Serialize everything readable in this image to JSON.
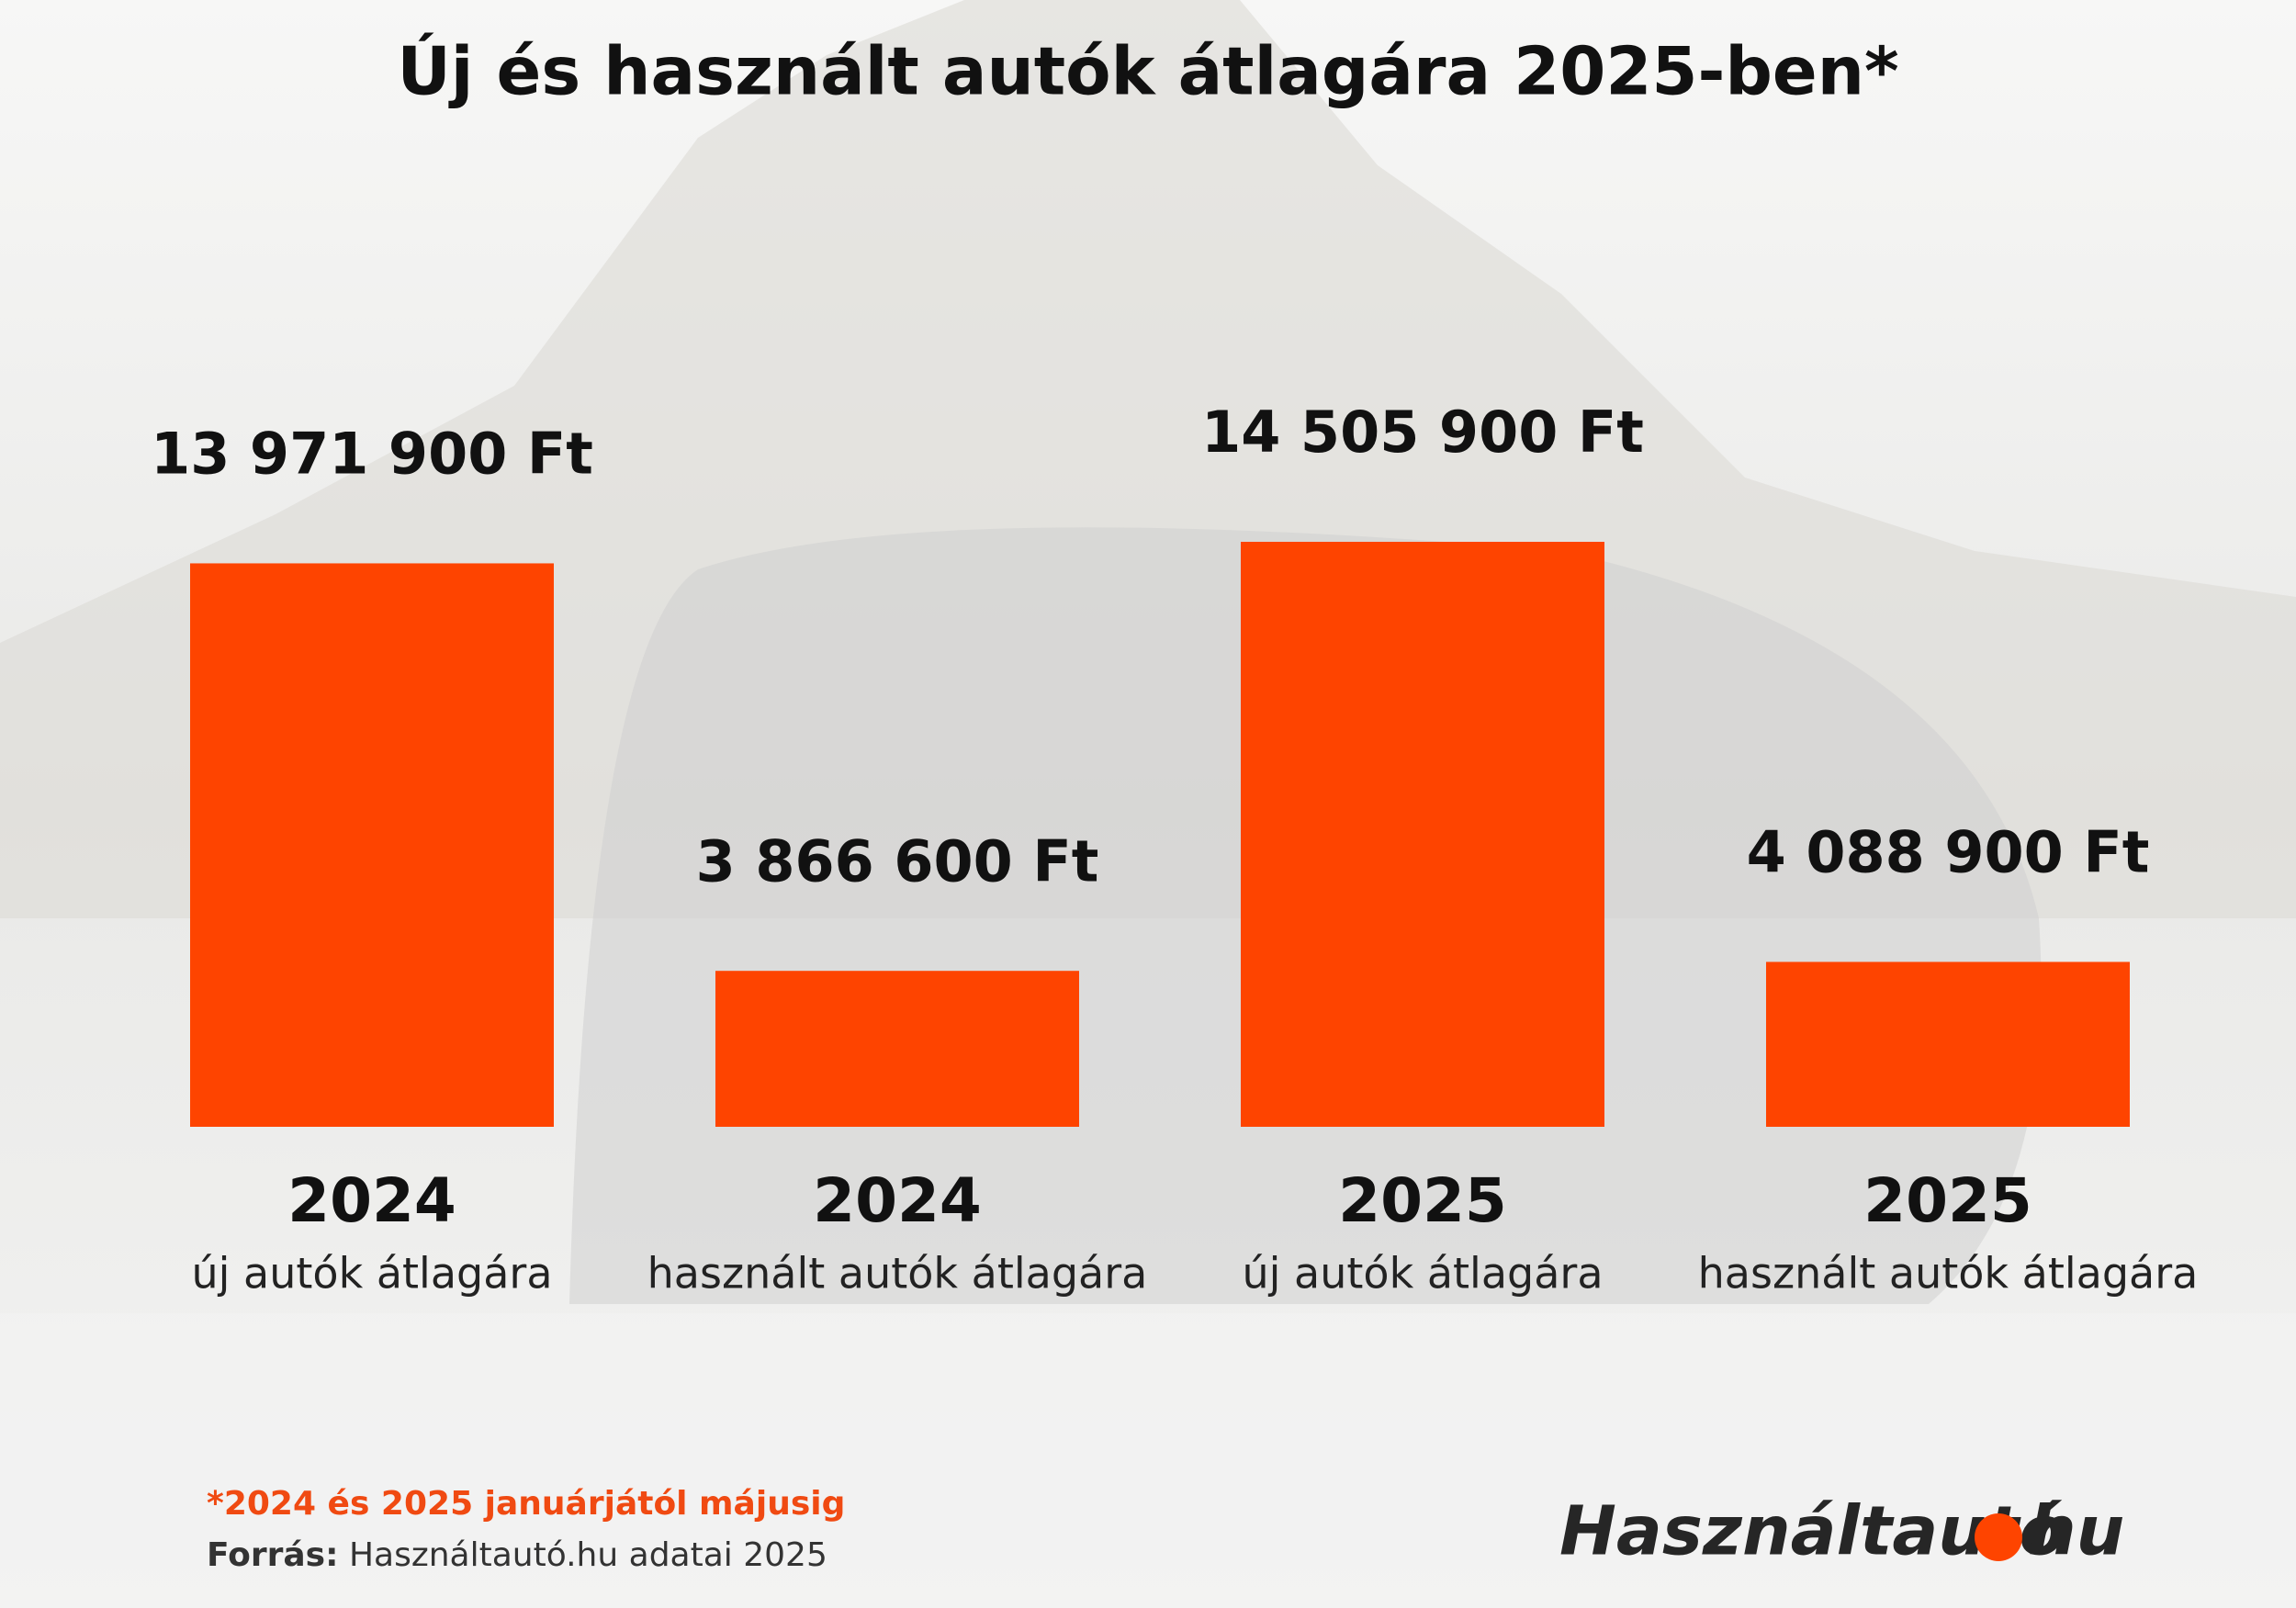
{
  "chart_data": {
    "type": "bar",
    "title": "Új és használt autók átlagára 2025-ben*",
    "categories": [
      "2024",
      "2024",
      "2025",
      "2025"
    ],
    "subcategories": [
      "új autók átlagára",
      "használt autók átlagára",
      "új autók átlagára",
      "használt autók átlagára"
    ],
    "values": [
      13971900,
      3866600,
      14505900,
      4088900
    ],
    "value_labels": [
      "13 971 900 Ft",
      "3 866 600 Ft",
      "14 505 900 Ft",
      "4 088 900 Ft"
    ],
    "color": "#fe4400",
    "footnote": "*2024 és 2025 januárjától májusig",
    "source_label": "Forrás:",
    "source_text": "Használtautó.hu adatai 2025",
    "logo_left": "Használtautó",
    "logo_right": "hu"
  }
}
